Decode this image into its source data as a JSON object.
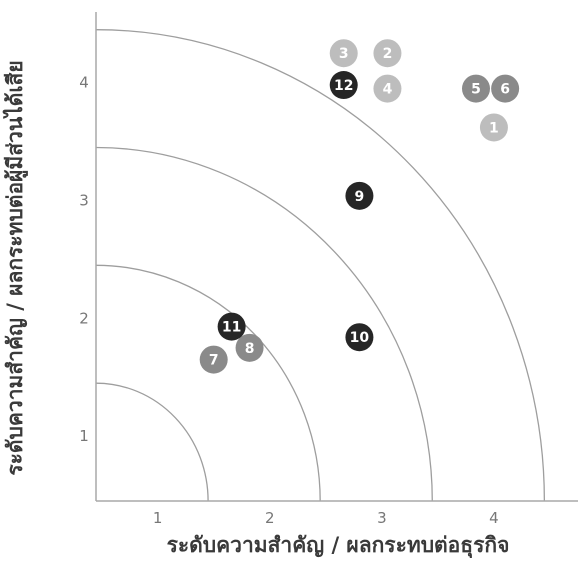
{
  "chart_data": {
    "type": "scatter",
    "xlabel": "ระดับความสำคัญ / ผลกระทบต่อธุรกิจ",
    "ylabel": "ระดับความสำคัญ / ผลกระทบต่อผู้มีส่วนได้เสีย",
    "x_ticks": [
      "1",
      "2",
      "3",
      "4"
    ],
    "y_ticks": [
      "1",
      "2",
      "3",
      "4"
    ],
    "xlim": [
      0.45,
      4.75
    ],
    "ylim": [
      0.45,
      4.6
    ],
    "grid": false,
    "legend": "none",
    "rings": [
      1.0,
      2.0,
      3.0,
      4.0
    ],
    "points": [
      {
        "label": "1",
        "x": 4.0,
        "y": 3.62,
        "level": "light"
      },
      {
        "label": "2",
        "x": 3.05,
        "y": 4.25,
        "level": "light"
      },
      {
        "label": "3",
        "x": 2.66,
        "y": 4.25,
        "level": "light"
      },
      {
        "label": "4",
        "x": 3.05,
        "y": 3.95,
        "level": "light"
      },
      {
        "label": "5",
        "x": 3.84,
        "y": 3.95,
        "level": "medium"
      },
      {
        "label": "6",
        "x": 4.1,
        "y": 3.95,
        "level": "medium"
      },
      {
        "label": "7",
        "x": 1.5,
        "y": 1.65,
        "level": "medium"
      },
      {
        "label": "8",
        "x": 1.82,
        "y": 1.75,
        "level": "medium"
      },
      {
        "label": "9",
        "x": 2.8,
        "y": 3.04,
        "level": "dark"
      },
      {
        "label": "10",
        "x": 2.8,
        "y": 1.84,
        "level": "dark"
      },
      {
        "label": "11",
        "x": 1.66,
        "y": 1.93,
        "level": "dark"
      },
      {
        "label": "12",
        "x": 2.66,
        "y": 3.98,
        "level": "dark"
      }
    ]
  },
  "colors": {
    "light": "#bdbdbd",
    "medium": "#8a8a8a",
    "dark": "#262626",
    "axis": "#a8a8a8",
    "ring": "#9e9e9e",
    "tick": "#777777",
    "title": "#3a3a3a"
  }
}
